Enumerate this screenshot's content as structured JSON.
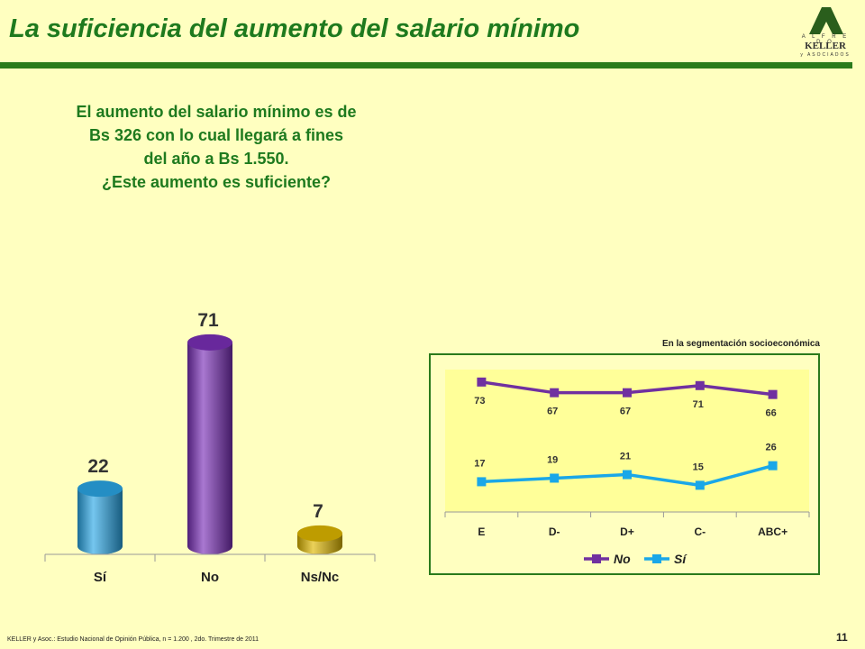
{
  "header": {
    "title": "La suficiencia del aumento del salario mínimo",
    "logo": {
      "top": "A L F R E D O",
      "name": "KELLER",
      "bottom": "y ASOCIADOS"
    }
  },
  "question": {
    "lines": [
      "El aumento del salario mínimo es de",
      "Bs 326 con lo cual llegará a fines",
      "del año a Bs 1.550.",
      "¿Este aumento es suficiente?"
    ]
  },
  "segment_caption": "En la segmentación socioeconómica",
  "footer": {
    "source": "KELLER y Asoc.: Estudio Nacional de Opinión Pública, n = 1.200 , 2do. Trimestre de 2011",
    "page": "11"
  },
  "colors": {
    "title": "#1e7a1e",
    "rule": "#2a7a1c",
    "bar_si": "#2aa7e6",
    "bar_no": "#7a2fb8",
    "bar_nsnc": "#e0b800",
    "line_no": "#7030a0",
    "line_si": "#1aa7e8",
    "plot_bg": "#ffff99"
  },
  "chart_data": [
    {
      "type": "bar",
      "categories": [
        "Sí",
        "No",
        "Ns/Nc"
      ],
      "values": [
        22,
        71,
        7
      ],
      "ylim": [
        0,
        80
      ]
    },
    {
      "type": "line",
      "categories": [
        "E",
        "D-",
        "D+",
        "C-",
        "ABC+"
      ],
      "series": [
        {
          "name": "No",
          "values": [
            73,
            67,
            67,
            71,
            66
          ]
        },
        {
          "name": "Sí",
          "values": [
            17,
            19,
            21,
            15,
            26
          ]
        }
      ],
      "ylim": [
        0,
        80
      ],
      "legend": "bottom"
    }
  ]
}
